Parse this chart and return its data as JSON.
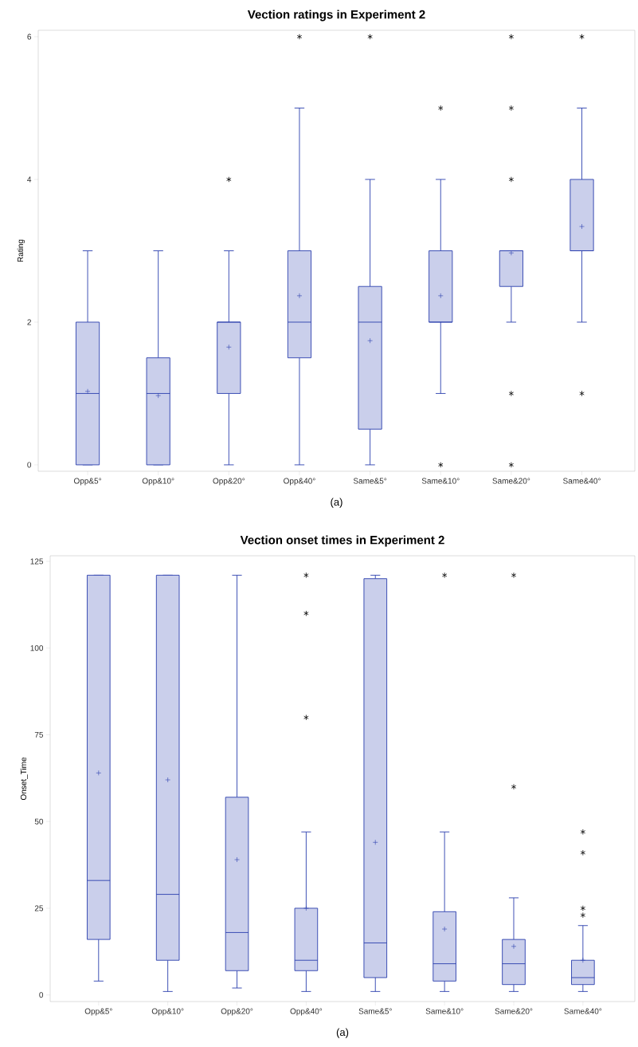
{
  "chart_data": [
    {
      "type": "box",
      "title": "Vection ratings in Experiment 2",
      "ylabel": "Rating",
      "color": "#2b3fae",
      "categories": [
        "Opp&5°",
        "Opp&10°",
        "Opp&20°",
        "Opp&40°",
        "Same&5°",
        "Same&10°",
        "Same&20°",
        "Same&40°"
      ],
      "ylim": [
        -0.09,
        6.09
      ],
      "yticks": [
        0,
        2,
        4,
        6
      ],
      "boxes": [
        {
          "low": 0,
          "q1": 0,
          "median": 1,
          "q3": 2,
          "high": 3,
          "mean": 1.03
        },
        {
          "low": 0,
          "q1": 0,
          "median": 1,
          "q3": 1.5,
          "high": 3,
          "mean": 0.97
        },
        {
          "low": 0,
          "q1": 1,
          "median": 2,
          "q3": 2,
          "high": 3,
          "mean": 1.65,
          "outliers": [
            4
          ]
        },
        {
          "low": 0,
          "q1": 1.5,
          "median": 2,
          "q3": 3,
          "high": 5,
          "mean": 2.37,
          "outliers": [
            6
          ]
        },
        {
          "low": 0,
          "q1": 0.5,
          "median": 2,
          "q3": 2.5,
          "high": 4,
          "mean": 1.74,
          "outliers": [
            6
          ]
        },
        {
          "low": 1,
          "q1": 2,
          "median": 2,
          "q3": 3,
          "high": 4,
          "mean": 2.37,
          "outliers": [
            5,
            0
          ]
        },
        {
          "low": 2,
          "q1": 2.5,
          "median": 3,
          "q3": 3,
          "high": 3,
          "mean": 2.97,
          "outliers": [
            6,
            5,
            4,
            1,
            0
          ]
        },
        {
          "low": 2,
          "q1": 3,
          "median": 3,
          "q3": 4,
          "high": 5,
          "mean": 3.34,
          "outliers": [
            6,
            1
          ]
        }
      ],
      "annotations": [
        "(a)"
      ]
    },
    {
      "type": "box",
      "title": "Vection onset times in Experiment 2",
      "ylabel": "Onset_Time",
      "color": "#2b3fae",
      "categories": [
        "Opp&5°",
        "Opp&10°",
        "Opp&20°",
        "Opp&40°",
        "Same&5°",
        "Same&10°",
        "Same&20°",
        "Same&40°"
      ],
      "ylim": [
        -1.9,
        126.6
      ],
      "yticks": [
        0,
        25,
        50,
        75,
        100,
        125
      ],
      "boxes": [
        {
          "low": 4,
          "q1": 16,
          "median": 33,
          "q3": 121,
          "high": 121,
          "mean": 64
        },
        {
          "low": 1,
          "q1": 10,
          "median": 29,
          "q3": 121,
          "high": 121,
          "mean": 62
        },
        {
          "low": 2,
          "q1": 7,
          "median": 18,
          "q3": 57,
          "high": 121,
          "mean": 39
        },
        {
          "low": 1,
          "q1": 7,
          "median": 10,
          "q3": 25,
          "high": 47,
          "mean": 25,
          "outliers": [
            121,
            110,
            80
          ]
        },
        {
          "low": 1,
          "q1": 5,
          "median": 15,
          "q3": 120,
          "high": 121,
          "mean": 44
        },
        {
          "low": 1,
          "q1": 4,
          "median": 9,
          "q3": 24,
          "high": 47,
          "mean": 19,
          "outliers": [
            121
          ]
        },
        {
          "low": 1,
          "q1": 3,
          "median": 9,
          "q3": 16,
          "high": 28,
          "mean": 14,
          "outliers": [
            121,
            60
          ]
        },
        {
          "low": 1,
          "q1": 3,
          "median": 5,
          "q3": 10,
          "high": 20,
          "mean": 10,
          "outliers": [
            47,
            41,
            25,
            23
          ]
        }
      ],
      "annotations": [
        "(a)"
      ]
    }
  ]
}
